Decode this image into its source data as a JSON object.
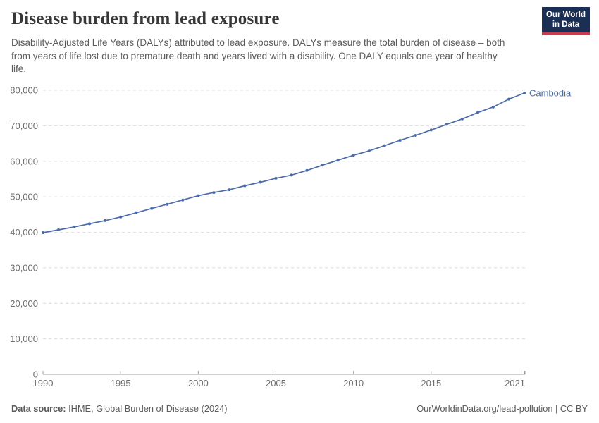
{
  "header": {
    "title": "Disease burden from lead exposure",
    "subtitle": "Disability-Adjusted Life Years (DALYs) attributed to lead exposure. DALYs measure the total burden of disease – both from years of life lost due to premature death and years lived with a disability. One DALY equals one year of healthy life.",
    "logo": {
      "line1": "Our World",
      "line2": "in Data"
    }
  },
  "chart_data": {
    "type": "line",
    "title": "Disease burden from lead exposure",
    "entity_label": "Cambodia",
    "x": [
      1990,
      1991,
      1992,
      1993,
      1994,
      1995,
      1996,
      1997,
      1998,
      1999,
      2000,
      2001,
      2002,
      2003,
      2004,
      2005,
      2006,
      2007,
      2008,
      2009,
      2010,
      2011,
      2012,
      2013,
      2014,
      2015,
      2016,
      2017,
      2018,
      2019,
      2020,
      2021
    ],
    "series": [
      {
        "name": "Cambodia",
        "values": [
          39900,
          40700,
          41500,
          42400,
          43300,
          44300,
          45500,
          46700,
          47900,
          49100,
          50300,
          51200,
          52000,
          53100,
          54100,
          55200,
          56100,
          57400,
          58900,
          60300,
          61700,
          62900,
          64400,
          65900,
          67300,
          68800,
          70400,
          71900,
          73700,
          75300,
          77500,
          79200
        ]
      }
    ],
    "xticks": [
      1990,
      1995,
      2000,
      2005,
      2010,
      2015,
      2021
    ],
    "yticks": [
      0,
      10000,
      20000,
      30000,
      40000,
      50000,
      60000,
      70000,
      80000
    ],
    "xlim": [
      1990,
      2021
    ],
    "ylim": [
      0,
      80000
    ],
    "grid": true,
    "legend_position": "end-of-line",
    "colors": {
      "line": "#4c6ba8",
      "entity_label": "#4c6a9c",
      "grid": "#dcdcdc",
      "axis": "#9c9c9c",
      "tick_text": "#6e6e6e"
    }
  },
  "footer": {
    "source_label": "Data source:",
    "source_text": " IHME, Global Burden of Disease (2024)",
    "link_text": "OurWorldinData.org/lead-pollution | CC BY"
  }
}
